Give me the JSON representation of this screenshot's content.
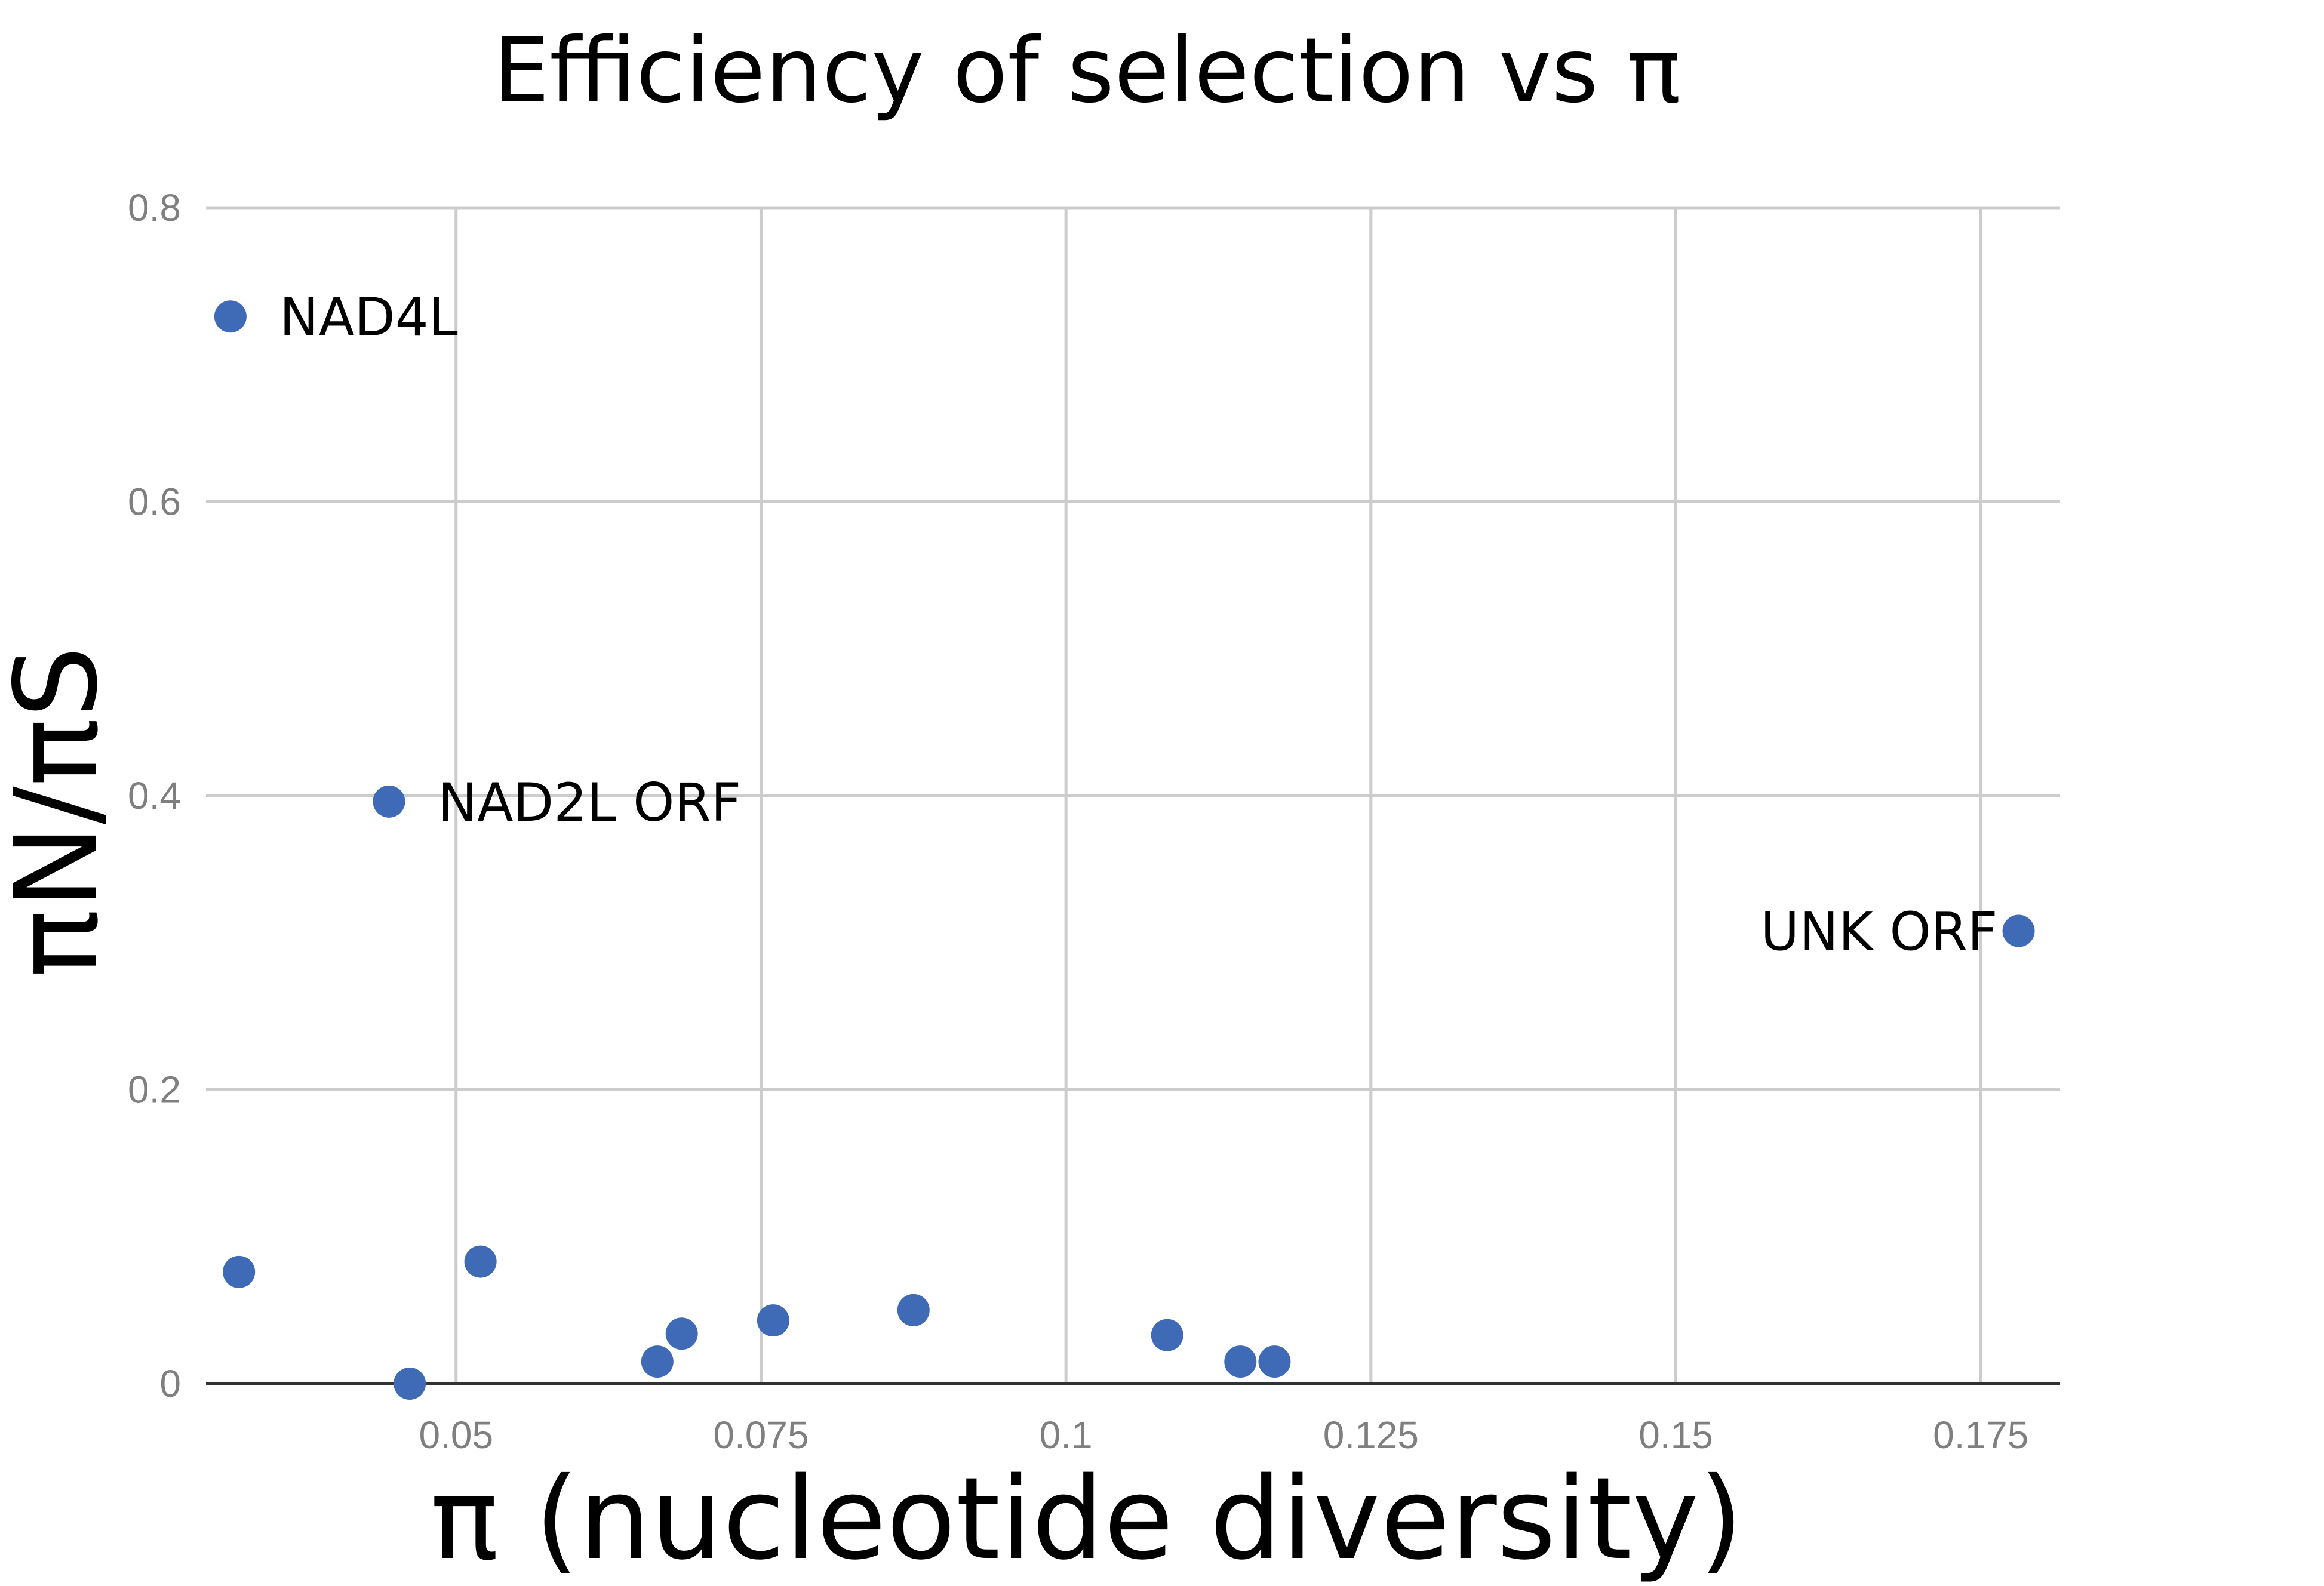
{
  "chart_data": {
    "type": "scatter",
    "title": "Efficiency of selection vs π",
    "xlabel": "π (nucleotide diversity)",
    "ylabel": "πN/πS",
    "xlim": [
      0.0295,
      0.1815
    ],
    "ylim": [
      0,
      0.8
    ],
    "x_ticks": [
      0.05,
      0.075,
      0.1,
      0.125,
      0.15,
      0.175
    ],
    "x_tick_labels": [
      "0.05",
      "0.075",
      "0.1",
      "0.125",
      "0.15",
      "0.175"
    ],
    "y_ticks": [
      0,
      0.2,
      0.4,
      0.6,
      0.8
    ],
    "y_tick_labels": [
      "0",
      "0.2",
      "0.4",
      "0.6",
      "0.8"
    ],
    "grid": true,
    "legend": "none",
    "point_color": "#3f6ab5",
    "points": [
      {
        "x": 0.0315,
        "y": 0.726,
        "label": "NAD4L"
      },
      {
        "x": 0.0445,
        "y": 0.396,
        "label": "NAD2L ORF"
      },
      {
        "x": 0.1781,
        "y": 0.308,
        "label": "UNK ORF"
      },
      {
        "x": 0.0322,
        "y": 0.076,
        "label": ""
      },
      {
        "x": 0.0462,
        "y": 0.0,
        "label": ""
      },
      {
        "x": 0.052,
        "y": 0.083,
        "label": ""
      },
      {
        "x": 0.0665,
        "y": 0.015,
        "label": ""
      },
      {
        "x": 0.0685,
        "y": 0.034,
        "label": ""
      },
      {
        "x": 0.076,
        "y": 0.043,
        "label": ""
      },
      {
        "x": 0.0875,
        "y": 0.05,
        "label": ""
      },
      {
        "x": 0.1083,
        "y": 0.033,
        "label": ""
      },
      {
        "x": 0.1143,
        "y": 0.015,
        "label": ""
      },
      {
        "x": 0.1171,
        "y": 0.015,
        "label": ""
      }
    ]
  }
}
